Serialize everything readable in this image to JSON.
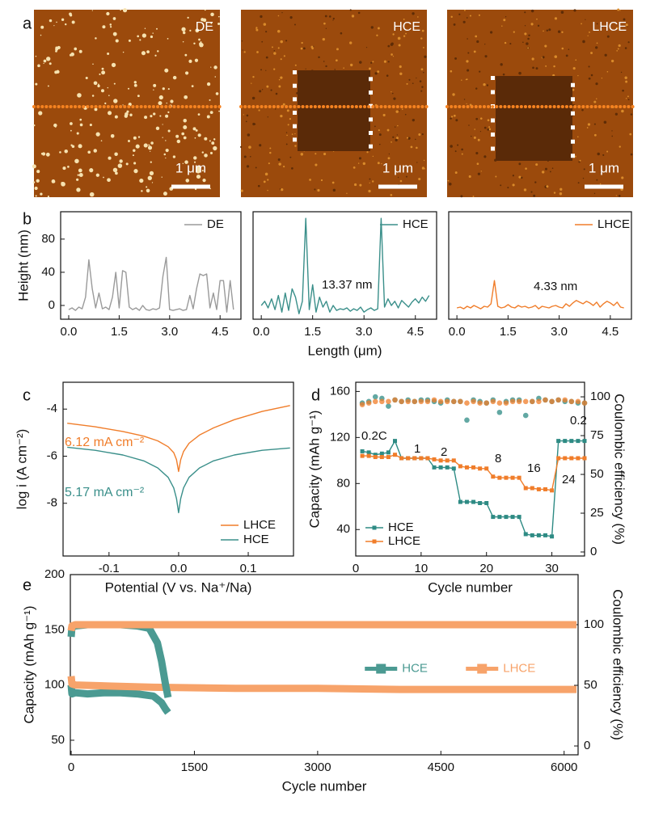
{
  "panel_labels": [
    "a",
    "b",
    "c",
    "d",
    "e"
  ],
  "images": [
    {
      "label": "DE",
      "scale_bar": "1 μm"
    },
    {
      "label": "HCE",
      "scale_bar": "1 μm"
    },
    {
      "label": "LHCE",
      "scale_bar": "1 μm"
    }
  ],
  "chart_data": [
    {
      "type": "line",
      "ylabel": "Height (nm)",
      "legend": "upper right",
      "x": [
        0,
        0.1,
        0.2,
        0.3,
        0.4,
        0.5,
        0.6,
        0.7,
        0.8,
        0.9,
        1,
        1.1,
        1.2,
        1.3,
        1.4,
        1.5,
        1.6,
        1.7,
        1.8,
        1.9,
        2,
        2.1,
        2.2,
        2.3,
        2.4,
        2.5,
        2.6,
        2.7,
        2.8,
        2.9,
        3,
        3.1,
        3.2,
        3.3,
        3.4,
        3.5,
        3.6,
        3.7,
        3.8,
        3.9,
        4,
        4.1,
        4.2,
        4.3,
        4.4,
        4.5,
        4.6,
        4.7,
        4.8,
        4.9
      ],
      "xlim": [
        -0.24,
        5.12
      ],
      "xticks": [
        {
          "value": 0,
          "label": "0.0"
        },
        1.5,
        {
          "value": 3,
          "label": "3.0"
        },
        4.5
      ],
      "ylim": [
        -16.6,
        113
      ],
      "yticks": [
        0,
        40,
        80
      ],
      "series": [
        {
          "name": "DE",
          "color": "#9a9a9a",
          "values": [
            -5,
            -3,
            -6,
            -2,
            -4,
            10,
            55,
            20,
            -3,
            15,
            -4,
            -2,
            -5,
            10,
            40,
            -3,
            42,
            40,
            -2,
            -5,
            -3,
            -6,
            0,
            -5,
            -6,
            -4,
            -5,
            -3,
            35,
            58,
            -5,
            -6,
            -5,
            -4,
            -6,
            -5,
            12,
            -4,
            20,
            38,
            36,
            38,
            -3,
            15,
            -5,
            30,
            30,
            -8,
            30,
            -5
          ]
        }
      ]
    },
    {
      "type": "line",
      "xlabel": "Length (μm)",
      "legend": "upper right",
      "annotations": [
        "13.37 nm"
      ],
      "x": [
        0,
        0.1,
        0.2,
        0.3,
        0.4,
        0.5,
        0.6,
        0.7,
        0.8,
        0.9,
        1,
        1.1,
        1.2,
        1.3,
        1.4,
        1.5,
        1.6,
        1.7,
        1.8,
        1.9,
        2,
        2.1,
        2.2,
        2.3,
        2.4,
        2.5,
        2.6,
        2.7,
        2.8,
        2.9,
        3,
        3.1,
        3.2,
        3.3,
        3.4,
        3.5,
        3.6,
        3.7,
        3.8,
        3.9,
        4,
        4.1,
        4.2,
        4.3,
        4.4,
        4.5,
        4.6,
        4.7,
        4.8,
        4.9
      ],
      "xlim": [
        -0.24,
        5.12
      ],
      "xticks": [
        {
          "value": 0,
          "label": "0.0"
        },
        1.5,
        {
          "value": 3,
          "label": "3.0"
        },
        4.5
      ],
      "ylim": [
        -16.6,
        113
      ],
      "series": [
        {
          "name": "HCE",
          "color": "#3a8f8a",
          "values": [
            0,
            5,
            -3,
            8,
            -5,
            12,
            -8,
            15,
            -6,
            20,
            10,
            -10,
            5,
            105,
            -5,
            25,
            -8,
            10,
            -2,
            5,
            -8,
            0,
            -6,
            -4,
            -5,
            -3,
            -7,
            -4,
            -6,
            -2,
            -8,
            -5,
            -3,
            -6,
            -4,
            105,
            -2,
            8,
            0,
            5,
            -3,
            6,
            2,
            -2,
            4,
            8,
            3,
            10,
            5,
            12
          ]
        }
      ]
    },
    {
      "type": "line",
      "legend": "upper right",
      "annotations": [
        "4.33 nm"
      ],
      "x": [
        0,
        0.1,
        0.2,
        0.3,
        0.4,
        0.5,
        0.6,
        0.7,
        0.8,
        0.9,
        1,
        1.1,
        1.2,
        1.3,
        1.4,
        1.5,
        1.6,
        1.7,
        1.8,
        1.9,
        2,
        2.1,
        2.2,
        2.3,
        2.4,
        2.5,
        2.6,
        2.7,
        2.8,
        2.9,
        3,
        3.1,
        3.2,
        3.3,
        3.4,
        3.5,
        3.6,
        3.7,
        3.8,
        3.9,
        4,
        4.1,
        4.2,
        4.3,
        4.4,
        4.5,
        4.6,
        4.7,
        4.8,
        4.9
      ],
      "xlim": [
        -0.24,
        5.12
      ],
      "xticks": [
        {
          "value": 0,
          "label": "0.0"
        },
        1.5,
        {
          "value": 3,
          "label": "3.0"
        },
        4.5
      ],
      "ylim": [
        -16.6,
        113
      ],
      "series": [
        {
          "name": "LHCE",
          "color": "#f07d2a",
          "values": [
            -3,
            -2,
            -4,
            -1,
            -3,
            0,
            -2,
            -4,
            -1,
            -2,
            2,
            30,
            -1,
            -3,
            -2,
            1,
            -2,
            -3,
            0,
            -2,
            -1,
            -3,
            -2,
            0,
            -4,
            -1,
            -2,
            -3,
            -1,
            0,
            -2,
            -3,
            2,
            -1,
            3,
            6,
            4,
            2,
            5,
            3,
            0,
            4,
            -2,
            2,
            5,
            3,
            0,
            4,
            -2,
            -3
          ]
        }
      ]
    },
    {
      "type": "line",
      "ylabel": "log i (A cm⁻²)",
      "xlabel": "Potential (V vs. Na⁺/Na)",
      "legend": "lower right",
      "annotations": [
        {
          "text": "6.12 mA cm⁻²",
          "color": "#f07d2a"
        },
        {
          "text": "5.17 mA cm⁻²",
          "color": "#3a8f8a"
        }
      ],
      "x": [
        -0.16,
        -0.12,
        -0.08,
        -0.05,
        -0.03,
        -0.015,
        -0.007,
        -0.003,
        0,
        0.003,
        0.007,
        0.015,
        0.03,
        0.05,
        0.08,
        0.12,
        0.16
      ],
      "xlim": [
        -0.166,
        0.165
      ],
      "xticks": [
        -0.1,
        {
          "value": 0,
          "label": "0.0"
        },
        0.1
      ],
      "ylim": [
        -10.24,
        -2.86
      ],
      "yticks": [
        -8,
        -6,
        -4
      ],
      "series": [
        {
          "name": "LHCE",
          "color": "#f07d2a",
          "values": [
            -4.6,
            -4.75,
            -4.95,
            -5.15,
            -5.35,
            -5.6,
            -5.85,
            -6.15,
            -6.65,
            -6.15,
            -5.8,
            -5.45,
            -5.1,
            -4.8,
            -4.45,
            -4.1,
            -3.85
          ]
        },
        {
          "name": "HCE",
          "color": "#3a8f8a",
          "values": [
            -5.62,
            -5.75,
            -5.95,
            -6.2,
            -6.5,
            -6.9,
            -7.35,
            -7.8,
            -8.4,
            -7.8,
            -7.35,
            -6.9,
            -6.5,
            -6.2,
            -5.95,
            -5.75,
            -5.65
          ]
        }
      ]
    },
    {
      "type": "line",
      "ylabel": "Capacity (mAh g⁻¹)",
      "y2label": "Coulombic efficiency (%)",
      "xlabel": "Cycle number",
      "legend": "lower left",
      "annotations": [
        "0.2C",
        "1",
        "2",
        "8",
        "16",
        "24",
        "0.2"
      ],
      "x": [
        1,
        2,
        3,
        4,
        5,
        6,
        7,
        8,
        9,
        10,
        11,
        12,
        13,
        14,
        15,
        16,
        17,
        18,
        19,
        20,
        21,
        22,
        23,
        24,
        25,
        26,
        27,
        28,
        29,
        30,
        31,
        32,
        33,
        34,
        35
      ],
      "xlim": [
        0,
        35
      ],
      "xticks": [
        0,
        10,
        20,
        30
      ],
      "ylim": [
        17,
        168
      ],
      "yticks": [
        40,
        80,
        120,
        160
      ],
      "y2lim": [
        -2.6,
        109.4
      ],
      "y2ticks": [
        0,
        25,
        50,
        75,
        100
      ],
      "series": [
        {
          "name": "HCE",
          "color": "#2e8b84",
          "marker": "square",
          "values": [
            108,
            107,
            105,
            106,
            107,
            117,
            102,
            102,
            102,
            102,
            102,
            94,
            94,
            94,
            93,
            64,
            64,
            64,
            63,
            63,
            51,
            51,
            51,
            51,
            51,
            36,
            35,
            35,
            35,
            34,
            117,
            117,
            117,
            117,
            117
          ]
        },
        {
          "name": "LHCE",
          "color": "#f07d2a",
          "marker": "square",
          "values": [
            104,
            104,
            103,
            103,
            103,
            105,
            102,
            102,
            102,
            102,
            102,
            101,
            100,
            100,
            100,
            95,
            94,
            94,
            93,
            93,
            86,
            85,
            85,
            85,
            85,
            76,
            76,
            75,
            75,
            74,
            102,
            102,
            102,
            102,
            102
          ]
        },
        {
          "color": "#2e8b84",
          "marker": "circle",
          "linestyle": "none",
          "axis": "y2",
          "values": [
            96,
            97,
            100,
            99,
            94,
            98,
            97,
            98,
            97,
            98,
            98,
            97,
            96,
            98,
            97,
            97,
            85,
            98,
            97,
            96,
            98,
            90,
            97,
            98,
            98,
            88,
            97,
            99,
            98,
            97,
            98,
            97,
            97,
            96,
            96
          ]
        },
        {
          "color": "#f07d2a",
          "marker": "circle",
          "linestyle": "none",
          "axis": "y2",
          "values": [
            95,
            96,
            97,
            97,
            97,
            98,
            97,
            97,
            97,
            97,
            97,
            98,
            97,
            97,
            97,
            97,
            96,
            97,
            96,
            96,
            97,
            96,
            96,
            97,
            97,
            97,
            97,
            97,
            98,
            97,
            98,
            98,
            97,
            97,
            96
          ]
        }
      ]
    },
    {
      "type": "line",
      "ylabel": "Capacity (mAh g⁻¹)",
      "y2label": "Coulombic efficiency (%)",
      "xlabel": "Cycle number",
      "legend": "center",
      "xlim": [
        -10,
        6170
      ],
      "xticks": [
        0,
        1500,
        3000,
        4500,
        6000
      ],
      "ylim": [
        36.8,
        200
      ],
      "yticks": [
        50,
        100,
        150,
        200
      ],
      "y2lim": [
        -7.3,
        141.3
      ],
      "y2ticks": [
        0,
        50,
        100
      ],
      "series": [
        {
          "name": "HCE",
          "color": "#4b9a92",
          "marker": "square",
          "x": [
            0,
            10,
            50,
            200,
            400,
            600,
            800,
            1000,
            1100,
            1150,
            1180
          ],
          "values": [
            100,
            92,
            93,
            92,
            93,
            93,
            92,
            90,
            84,
            78,
            75
          ]
        },
        {
          "name": "LHCE",
          "color": "#f7a36a",
          "marker": "square",
          "x": [
            0,
            10,
            50,
            500,
            1000,
            2000,
            3000,
            4000,
            5000,
            6000,
            6150
          ],
          "values": [
            108,
            101,
            100,
            99,
            98,
            97,
            97,
            96,
            96,
            96,
            96
          ]
        },
        {
          "color": "#4b9a92",
          "axis": "y2",
          "x": [
            0,
            10,
            50,
            200,
            400,
            600,
            800,
            950,
            1050,
            1100,
            1150,
            1180
          ],
          "values": [
            90,
            98,
            99,
            100,
            100,
            100,
            99,
            97,
            85,
            70,
            50,
            40
          ]
        },
        {
          "color": "#f7a36a",
          "axis": "y2",
          "x": [
            0,
            10,
            50,
            1000,
            2000,
            3000,
            4000,
            5000,
            6000,
            6150
          ],
          "values": [
            95,
            99,
            100,
            100,
            100,
            100,
            100,
            100,
            100,
            100
          ]
        }
      ]
    }
  ]
}
